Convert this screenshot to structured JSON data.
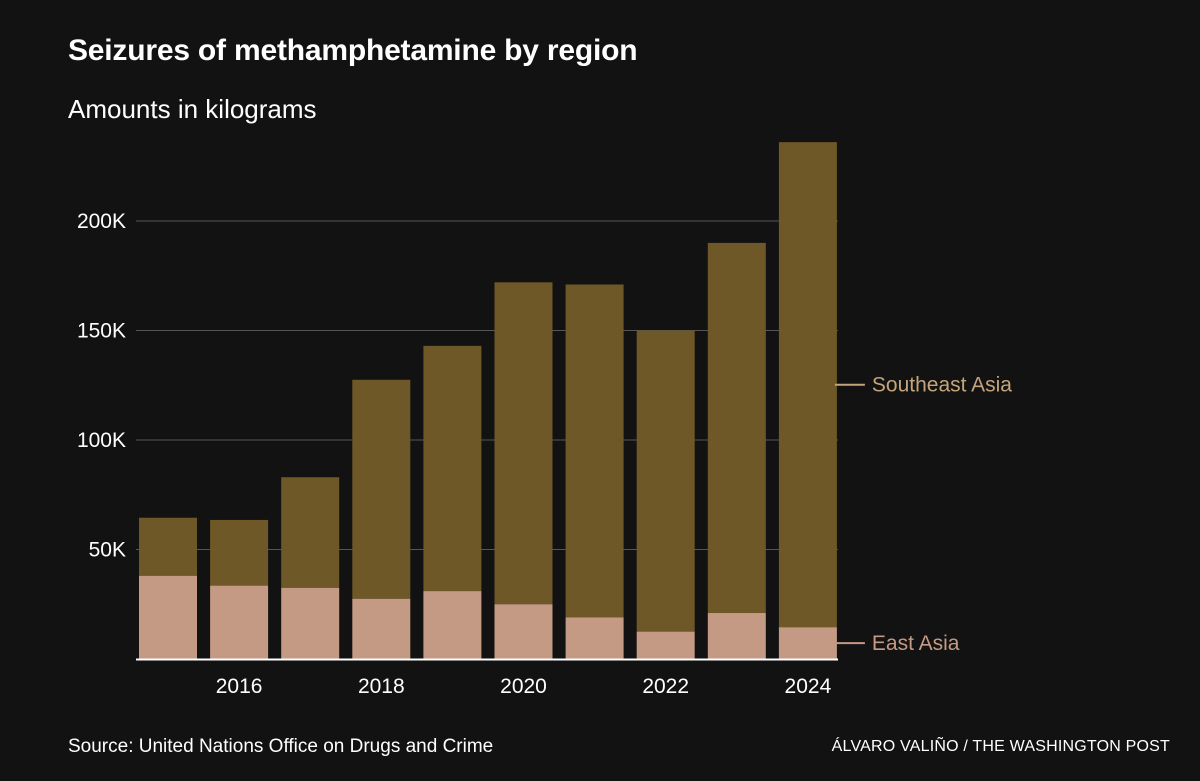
{
  "title": "Seizures of methamphetamine by region",
  "subtitle": "Amounts in kilograms",
  "source": "Source: United Nations Office on Drugs and Crime",
  "credit": "ÁLVARO VALIÑO / THE WASHINGTON POST",
  "colors": {
    "background": "#121212",
    "east_asia": "#c49a84",
    "southeast_asia": "#6e5827",
    "southeast_label": "#c4a47a",
    "east_label": "#c49a84",
    "grid": "#555555",
    "axis": "#ffffff"
  },
  "chart_data": {
    "type": "bar",
    "stacked": true,
    "categories": [
      2015,
      2016,
      2017,
      2018,
      2019,
      2020,
      2021,
      2022,
      2023,
      2024
    ],
    "x_tick_labels": [
      "2016",
      "2018",
      "2020",
      "2022",
      "2024"
    ],
    "y_tick_labels": [
      "50K",
      "100K",
      "150K",
      "200K"
    ],
    "y_ticks": [
      50000,
      100000,
      150000,
      200000
    ],
    "ylim": [
      0,
      240000
    ],
    "grid": true,
    "series": [
      {
        "name": "East Asia",
        "values": [
          38000,
          33500,
          32500,
          27500,
          31000,
          25000,
          19000,
          12500,
          21000,
          14500
        ]
      },
      {
        "name": "Southeast Asia",
        "values": [
          26500,
          30000,
          50500,
          100000,
          112000,
          147000,
          152000,
          137500,
          169000,
          221500
        ]
      }
    ]
  }
}
